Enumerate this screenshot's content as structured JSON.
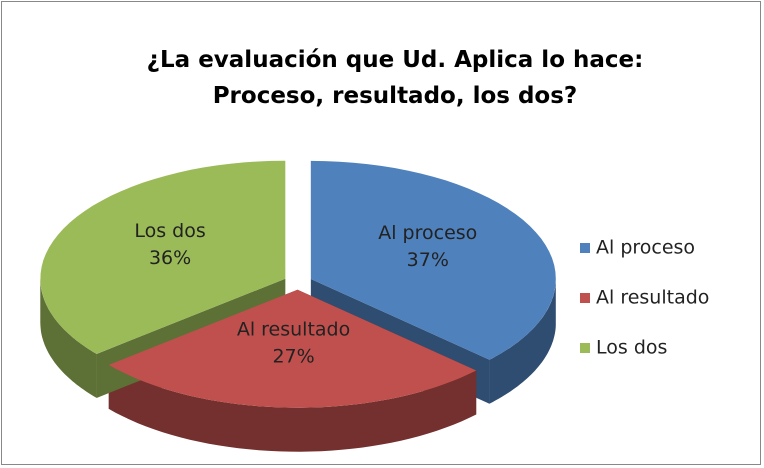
{
  "chart_data": {
    "type": "pie",
    "title": "¿La evaluación que Ud. Aplica lo hace: Proceso, resultado, los dos?",
    "categories": [
      "Al proceso",
      "Al resultado",
      "Los dos"
    ],
    "values": [
      37,
      27,
      36
    ],
    "value_labels": [
      "37%",
      "27%",
      "36%"
    ],
    "colors": [
      "#4f81bd",
      "#c0504d",
      "#9bbb59"
    ],
    "legend": "right"
  }
}
